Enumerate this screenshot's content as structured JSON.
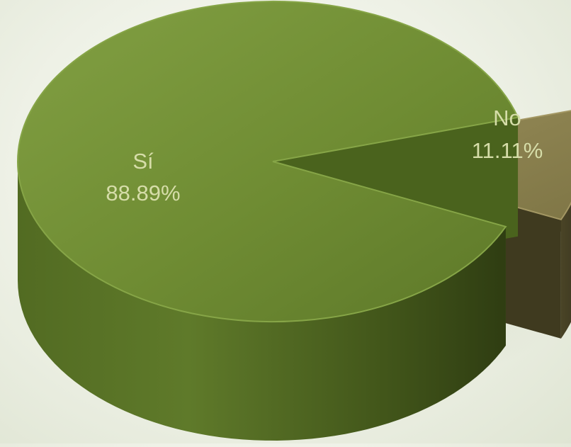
{
  "chart_data": {
    "type": "pie",
    "style": "3d-exploded",
    "title": "",
    "slices": [
      {
        "label": "Sí",
        "value": 88.89,
        "value_label": "88.89%",
        "color": "#6e8a33"
      },
      {
        "label": "No",
        "value": 11.11,
        "value_label": "11.11%",
        "color": "#8a8150"
      }
    ],
    "label_color": "#d6dda9",
    "legend": "none"
  }
}
